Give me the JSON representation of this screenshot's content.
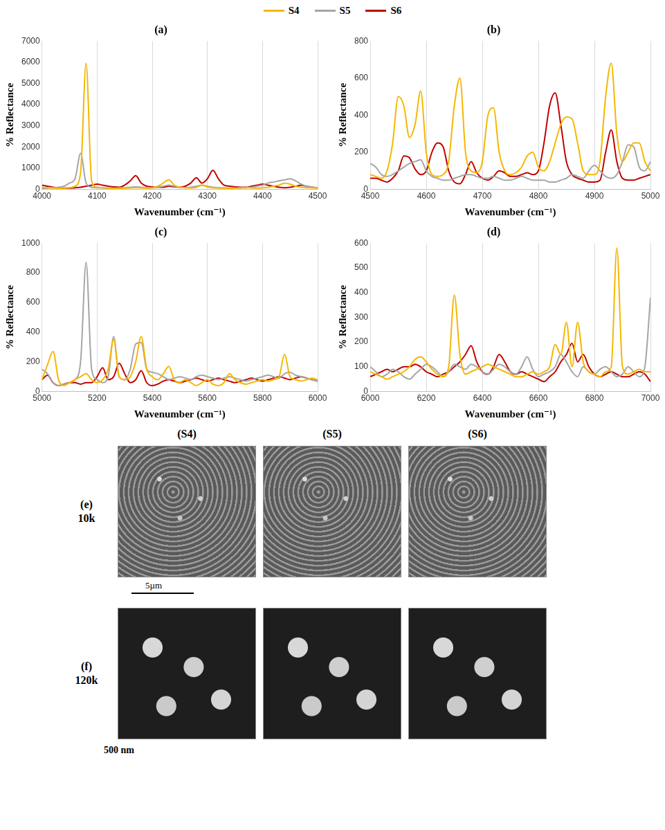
{
  "chart_data": [
    {
      "type": "line",
      "title": "(a)",
      "x_label": "Wavenumber (cm⁻¹)",
      "y_label": "% Reflectance",
      "xlim": [
        4000,
        4500
      ],
      "xticks": [
        4000,
        4100,
        4200,
        4300,
        4400,
        4500
      ],
      "ylim": [
        0,
        7000
      ],
      "yticks": [
        0,
        1000,
        2000,
        3000,
        4000,
        5000,
        6000,
        7000
      ],
      "grid": "x",
      "legend": "top",
      "x": [
        4000,
        4010,
        4020,
        4030,
        4040,
        4050,
        4060,
        4070,
        4080,
        4090,
        4100,
        4110,
        4120,
        4130,
        4140,
        4150,
        4160,
        4170,
        4180,
        4190,
        4200,
        4210,
        4220,
        4230,
        4240,
        4250,
        4260,
        4270,
        4280,
        4290,
        4300,
        4310,
        4320,
        4330,
        4340,
        4350,
        4360,
        4370,
        4380,
        4390,
        4400,
        4410,
        4420,
        4430,
        4440,
        4450,
        4460,
        4470,
        4480,
        4490,
        4500
      ],
      "series": [
        {
          "name": "S4",
          "color": "#f5b700",
          "values": [
            100,
            80,
            60,
            50,
            60,
            80,
            150,
            800,
            5950,
            400,
            100,
            80,
            60,
            50,
            50,
            60,
            70,
            80,
            70,
            60,
            80,
            150,
            300,
            450,
            200,
            100,
            80,
            70,
            100,
            200,
            120,
            80,
            70,
            60,
            50,
            60,
            70,
            80,
            70,
            60,
            80,
            100,
            150,
            200,
            300,
            250,
            150,
            100,
            80,
            70,
            60
          ]
        },
        {
          "name": "S5",
          "color": "#a5a5a5",
          "values": [
            50,
            60,
            80,
            100,
            150,
            300,
            500,
            1700,
            300,
            100,
            80,
            70,
            60,
            60,
            70,
            80,
            100,
            120,
            100,
            80,
            70,
            100,
            150,
            200,
            150,
            100,
            80,
            100,
            150,
            200,
            150,
            100,
            80,
            70,
            60,
            60,
            70,
            80,
            100,
            150,
            200,
            300,
            350,
            400,
            450,
            500,
            400,
            250,
            150,
            100,
            80
          ]
        },
        {
          "name": "S6",
          "color": "#c00000",
          "values": [
            200,
            150,
            100,
            80,
            60,
            60,
            80,
            100,
            150,
            200,
            250,
            200,
            150,
            120,
            100,
            200,
            400,
            650,
            300,
            150,
            120,
            100,
            100,
            150,
            120,
            100,
            150,
            300,
            550,
            300,
            500,
            900,
            500,
            200,
            150,
            120,
            100,
            100,
            150,
            200,
            250,
            200,
            150,
            100,
            80,
            100,
            150,
            200,
            150,
            100,
            80
          ]
        }
      ]
    },
    {
      "type": "line",
      "title": "(b)",
      "x_label": "Wavenumber (cm⁻¹)",
      "y_label": "% Reflectance",
      "xlim": [
        4500,
        5000
      ],
      "xticks": [
        4500,
        4600,
        4700,
        4800,
        4900,
        5000
      ],
      "ylim": [
        0,
        800
      ],
      "yticks": [
        0,
        200,
        400,
        600,
        800
      ],
      "grid": "x",
      "x": [
        4500,
        4510,
        4520,
        4530,
        4540,
        4550,
        4560,
        4570,
        4580,
        4590,
        4600,
        4610,
        4620,
        4630,
        4640,
        4650,
        4660,
        4670,
        4680,
        4690,
        4700,
        4710,
        4720,
        4730,
        4740,
        4750,
        4760,
        4770,
        4780,
        4790,
        4800,
        4810,
        4820,
        4830,
        4840,
        4850,
        4860,
        4870,
        4880,
        4890,
        4900,
        4910,
        4920,
        4930,
        4940,
        4950,
        4960,
        4970,
        4980,
        4990,
        5000
      ],
      "series": [
        {
          "name": "S4",
          "color": "#f5b700",
          "values": [
            80,
            70,
            60,
            100,
            250,
            500,
            450,
            280,
            350,
            530,
            200,
            80,
            70,
            80,
            150,
            450,
            600,
            200,
            100,
            90,
            150,
            400,
            440,
            200,
            100,
            80,
            90,
            120,
            180,
            200,
            120,
            100,
            150,
            250,
            350,
            390,
            380,
            250,
            100,
            80,
            80,
            150,
            500,
            680,
            300,
            150,
            200,
            250,
            250,
            150,
            100
          ]
        },
        {
          "name": "S5",
          "color": "#a5a5a5",
          "values": [
            140,
            120,
            80,
            70,
            80,
            100,
            120,
            140,
            150,
            160,
            100,
            70,
            60,
            50,
            50,
            60,
            70,
            80,
            80,
            70,
            60,
            60,
            70,
            60,
            50,
            50,
            60,
            70,
            60,
            50,
            50,
            50,
            40,
            40,
            50,
            60,
            80,
            70,
            60,
            100,
            130,
            100,
            70,
            60,
            80,
            150,
            240,
            230,
            120,
            100,
            150
          ]
        },
        {
          "name": "S6",
          "color": "#c00000",
          "values": [
            60,
            60,
            50,
            40,
            60,
            100,
            180,
            170,
            110,
            80,
            100,
            200,
            250,
            230,
            100,
            40,
            30,
            80,
            150,
            90,
            60,
            50,
            70,
            100,
            90,
            70,
            70,
            80,
            90,
            80,
            100,
            250,
            450,
            520,
            350,
            150,
            80,
            60,
            50,
            40,
            40,
            50,
            200,
            320,
            150,
            60,
            50,
            50,
            60,
            70,
            80
          ]
        }
      ]
    },
    {
      "type": "line",
      "title": "(c)",
      "x_label": "Wavenumber (cm⁻¹)",
      "y_label": "% Reflectance",
      "xlim": [
        5000,
        6000
      ],
      "xticks": [
        5000,
        5200,
        5400,
        5600,
        5800,
        6000
      ],
      "ylim": [
        0,
        1000
      ],
      "yticks": [
        0,
        200,
        400,
        600,
        800,
        1000
      ],
      "grid": "x",
      "x": [
        5000,
        5020,
        5040,
        5060,
        5080,
        5100,
        5120,
        5140,
        5160,
        5180,
        5200,
        5220,
        5240,
        5260,
        5280,
        5300,
        5320,
        5340,
        5360,
        5380,
        5400,
        5420,
        5440,
        5460,
        5480,
        5500,
        5520,
        5540,
        5560,
        5580,
        5600,
        5620,
        5640,
        5660,
        5680,
        5700,
        5720,
        5740,
        5760,
        5780,
        5800,
        5820,
        5840,
        5860,
        5880,
        5900,
        5920,
        5940,
        5960,
        5980,
        6000
      ],
      "series": [
        {
          "name": "S4",
          "color": "#f5b700",
          "values": [
            80,
            180,
            270,
            80,
            40,
            60,
            80,
            100,
            120,
            80,
            60,
            80,
            150,
            350,
            100,
            80,
            100,
            200,
            370,
            150,
            100,
            80,
            120,
            170,
            80,
            60,
            80,
            60,
            40,
            60,
            80,
            50,
            40,
            60,
            120,
            80,
            60,
            50,
            60,
            70,
            80,
            70,
            80,
            100,
            250,
            100,
            80,
            70,
            80,
            90,
            80
          ]
        },
        {
          "name": "S5",
          "color": "#a5a5a5",
          "values": [
            150,
            120,
            60,
            40,
            50,
            60,
            80,
            200,
            870,
            150,
            80,
            60,
            100,
            370,
            100,
            80,
            150,
            320,
            330,
            150,
            130,
            120,
            100,
            80,
            90,
            100,
            90,
            80,
            100,
            110,
            100,
            90,
            80,
            90,
            100,
            90,
            80,
            70,
            80,
            90,
            100,
            110,
            100,
            90,
            120,
            130,
            110,
            100,
            90,
            80,
            70
          ]
        },
        {
          "name": "S6",
          "color": "#c00000",
          "values": [
            80,
            110,
            60,
            40,
            50,
            60,
            60,
            50,
            60,
            60,
            100,
            160,
            80,
            100,
            190,
            120,
            60,
            80,
            140,
            60,
            40,
            50,
            70,
            80,
            70,
            60,
            70,
            80,
            90,
            80,
            70,
            80,
            90,
            80,
            70,
            60,
            70,
            80,
            90,
            80,
            70,
            80,
            90,
            100,
            90,
            80,
            90,
            100,
            90,
            80,
            70
          ]
        }
      ]
    },
    {
      "type": "line",
      "title": "(d)",
      "x_label": "Wavenumber (cm⁻¹)",
      "y_label": "% Reflectance",
      "xlim": [
        6000,
        7000
      ],
      "xticks": [
        6000,
        6200,
        6400,
        6600,
        6800,
        7000
      ],
      "ylim": [
        0,
        600
      ],
      "yticks": [
        0,
        100,
        200,
        300,
        400,
        500,
        600
      ],
      "grid": "x",
      "x": [
        6000,
        6020,
        6040,
        6060,
        6080,
        6100,
        6120,
        6140,
        6160,
        6180,
        6200,
        6220,
        6240,
        6260,
        6280,
        6300,
        6320,
        6340,
        6360,
        6380,
        6400,
        6420,
        6440,
        6460,
        6480,
        6500,
        6520,
        6540,
        6560,
        6580,
        6600,
        6620,
        6640,
        6660,
        6680,
        6700,
        6720,
        6740,
        6760,
        6780,
        6800,
        6820,
        6840,
        6860,
        6880,
        6900,
        6920,
        6940,
        6960,
        6980,
        7000
      ],
      "series": [
        {
          "name": "S4",
          "color": "#f5b700",
          "values": [
            80,
            70,
            60,
            50,
            60,
            70,
            80,
            100,
            130,
            140,
            120,
            90,
            70,
            60,
            100,
            390,
            150,
            70,
            80,
            90,
            100,
            110,
            100,
            90,
            80,
            70,
            60,
            60,
            70,
            80,
            70,
            80,
            100,
            190,
            150,
            280,
            100,
            280,
            120,
            80,
            70,
            60,
            80,
            100,
            580,
            100,
            70,
            80,
            90,
            80,
            80
          ]
        },
        {
          "name": "S5",
          "color": "#a5a5a5",
          "values": [
            100,
            80,
            60,
            70,
            90,
            80,
            60,
            50,
            70,
            90,
            110,
            100,
            80,
            60,
            80,
            110,
            100,
            90,
            110,
            100,
            80,
            70,
            90,
            110,
            100,
            80,
            70,
            100,
            140,
            90,
            60,
            70,
            80,
            100,
            150,
            120,
            80,
            60,
            100,
            80,
            70,
            90,
            100,
            80,
            60,
            70,
            100,
            80,
            60,
            100,
            380
          ]
        },
        {
          "name": "S6",
          "color": "#c00000",
          "values": [
            60,
            70,
            80,
            90,
            80,
            90,
            100,
            100,
            110,
            100,
            80,
            70,
            60,
            70,
            80,
            100,
            120,
            150,
            185,
            120,
            80,
            70,
            100,
            150,
            120,
            80,
            70,
            80,
            70,
            60,
            50,
            40,
            60,
            80,
            120,
            150,
            195,
            120,
            150,
            100,
            70,
            60,
            70,
            80,
            70,
            60,
            60,
            70,
            80,
            70,
            40
          ]
        }
      ]
    }
  ],
  "micrographs": {
    "columns": [
      "(S4)",
      "(S5)",
      "(S6)"
    ],
    "rows": [
      {
        "label": "(e)",
        "magnification": "10k",
        "scale_bar": "5µm"
      },
      {
        "label": "(f)",
        "magnification": "120k",
        "scale_bar": "500 nm"
      }
    ]
  }
}
